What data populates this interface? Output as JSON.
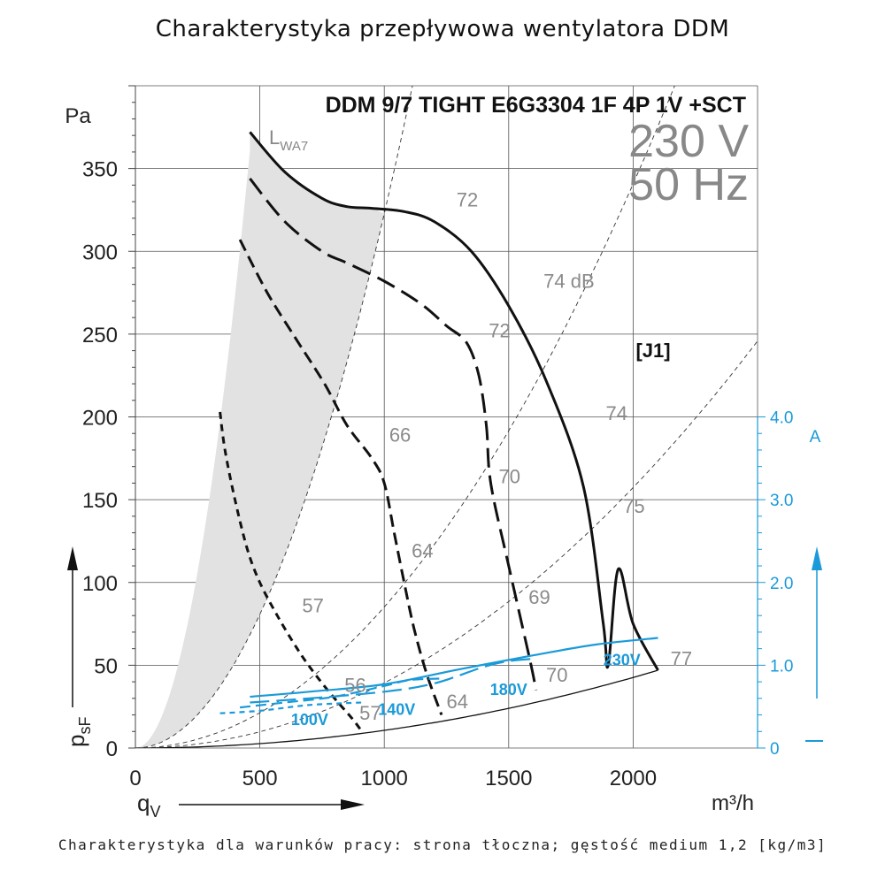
{
  "page_title": "Charakterystyka przepływowa wentylatora DDM",
  "footer": "Charakterystyka dla warunków pracy: strona tłoczna; gęstość medium 1,2 [kg/m3]",
  "chart_data": {
    "type": "line",
    "title": "DDM 9/7 TIGHT E6G3304 1F 4P 1V +SCT",
    "supply": {
      "voltage": "230 V",
      "frequency": "50 Hz"
    },
    "configuration_label": "[J1]",
    "xlabel": "qV",
    "xunit": "m³/h",
    "ylabel": "psF",
    "yunit": "Pa",
    "y2unit": "A",
    "xlim": [
      0,
      2500
    ],
    "ylim": [
      0,
      400
    ],
    "y2lim": [
      0,
      4.0
    ],
    "x_ticks": [
      "0",
      "500",
      "1000",
      "1500",
      "2000"
    ],
    "y_ticks": [
      "0",
      "50",
      "100",
      "150",
      "200",
      "250",
      "300",
      "350"
    ],
    "y2_ticks": [
      "0",
      "1.0",
      "2.0",
      "3.0",
      "4.0"
    ],
    "lwa_label": "LWA7",
    "series": [
      {
        "name": "230V",
        "label": "230V",
        "x": [
          460,
          600,
          750,
          850,
          950,
          1080,
          1200,
          1350,
          1500,
          1650,
          1800,
          1880,
          1900,
          1940,
          2000,
          2100
        ],
        "y": [
          372,
          348,
          332,
          327,
          326,
          324,
          318,
          300,
          267,
          222,
          158,
          75,
          50,
          108,
          75,
          47
        ]
      },
      {
        "name": "180V",
        "label": "180V",
        "x": [
          460,
          600,
          750,
          850,
          1000,
          1150,
          1250,
          1330,
          1380,
          1410,
          1420,
          1440,
          1500,
          1560,
          1590,
          1610
        ],
        "y": [
          344,
          318,
          300,
          293,
          282,
          268,
          255,
          245,
          225,
          195,
          170,
          150,
          110,
          70,
          50,
          35
        ]
      },
      {
        "name": "140V",
        "label": "140V",
        "x": [
          420,
          530,
          650,
          760,
          850,
          950,
          1000,
          1040,
          1080,
          1120,
          1170,
          1230
        ],
        "y": [
          307,
          275,
          246,
          220,
          195,
          175,
          160,
          130,
          100,
          72,
          45,
          20
        ]
      },
      {
        "name": "100V",
        "label": "100V",
        "x": [
          340,
          360,
          400,
          450,
          500,
          570,
          650,
          720,
          800,
          870,
          910
        ],
        "y": [
          203,
          180,
          150,
          120,
          100,
          80,
          60,
          45,
          30,
          18,
          10
        ]
      }
    ],
    "current_series": [
      {
        "name": "230V current",
        "x": [
          460,
          700,
          1000,
          1300,
          1600,
          1850,
          2100
        ],
        "y": [
          0.62,
          0.68,
          0.77,
          0.95,
          1.12,
          1.25,
          1.33
        ]
      },
      {
        "name": "180V current",
        "x": [
          460,
          700,
          1000,
          1200,
          1400,
          1500,
          1610
        ],
        "y": [
          0.55,
          0.6,
          0.68,
          0.78,
          0.98,
          1.05,
          1.08
        ]
      },
      {
        "name": "140V current",
        "x": [
          420,
          600,
          800,
          1000,
          1100,
          1230
        ],
        "y": [
          0.49,
          0.55,
          0.62,
          0.75,
          0.82,
          0.84
        ]
      },
      {
        "name": "100V current",
        "x": [
          340,
          500,
          700,
          910
        ],
        "y": [
          0.42,
          0.45,
          0.52,
          0.55
        ]
      }
    ],
    "system_curves": [
      {
        "label": "77",
        "x_end": 2100,
        "y_end": 47
      },
      {
        "label": "75",
        "x_end": 1920,
        "y_end": 145
      },
      {
        "label": "74 dB",
        "x_end": 1720,
        "y_end": 252
      },
      {
        "label": "72",
        "x_end": 1005,
        "y_end": 326
      }
    ],
    "annotations": [
      {
        "text": "72",
        "x": 1290,
        "y": 327
      },
      {
        "text": "74 dB",
        "x": 1640,
        "y": 278
      },
      {
        "text": "72",
        "x": 1420,
        "y": 248
      },
      {
        "text": "74",
        "x": 1890,
        "y": 198
      },
      {
        "text": "66",
        "x": 1020,
        "y": 185
      },
      {
        "text": "70",
        "x": 1460,
        "y": 160
      },
      {
        "text": "75",
        "x": 1960,
        "y": 142
      },
      {
        "text": "64",
        "x": 1110,
        "y": 115
      },
      {
        "text": "69",
        "x": 1580,
        "y": 87
      },
      {
        "text": "57",
        "x": 670,
        "y": 82
      },
      {
        "text": "56",
        "x": 840,
        "y": 34
      },
      {
        "text": "70",
        "x": 1650,
        "y": 40
      },
      {
        "text": "57",
        "x": 900,
        "y": 17
      },
      {
        "text": "64",
        "x": 1250,
        "y": 24
      },
      {
        "text": "77",
        "x": 2150,
        "y": 50
      }
    ],
    "voltage_labels": [
      {
        "text": "230V",
        "x": 1955,
        "y": 50
      },
      {
        "text": "180V",
        "x": 1500,
        "y": 32
      },
      {
        "text": "140V",
        "x": 1050,
        "y": 20
      },
      {
        "text": "100V",
        "x": 700,
        "y": 14
      }
    ]
  }
}
